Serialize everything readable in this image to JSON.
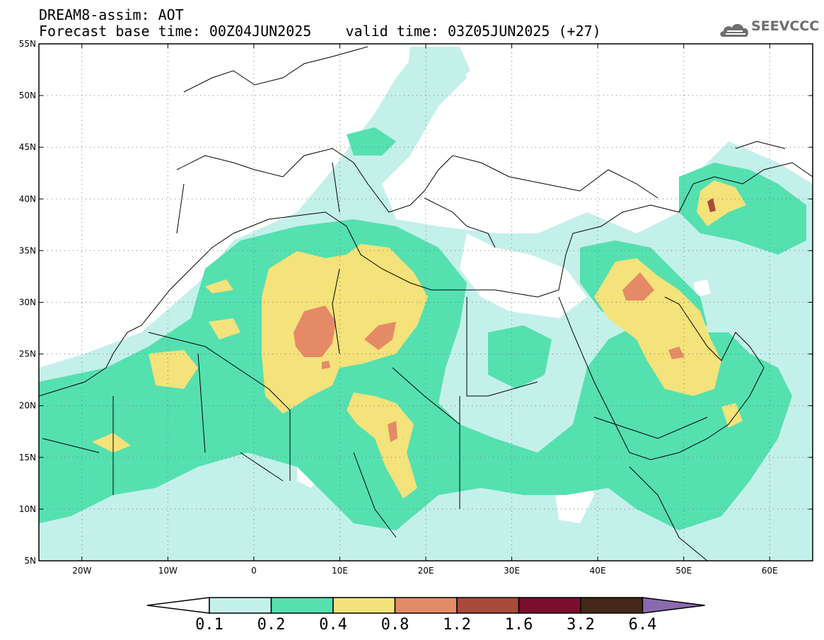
{
  "title": {
    "line1": "DREAM8-assim: AOT",
    "base_time_label": "Forecast base time: 00Z04JUN2025",
    "valid_time_label": "valid time: 03Z05JUN2025 (+27)"
  },
  "logo": {
    "text": "SEEVCCC"
  },
  "map": {
    "variable": "AOT",
    "lon_range": [
      -25,
      65
    ],
    "lat_range": [
      5,
      55
    ],
    "lon_ticks": [
      {
        "value": -20,
        "label": "20W"
      },
      {
        "value": -10,
        "label": "10W"
      },
      {
        "value": 0,
        "label": "0"
      },
      {
        "value": 10,
        "label": "10E"
      },
      {
        "value": 20,
        "label": "20E"
      },
      {
        "value": 30,
        "label": "30E"
      },
      {
        "value": 40,
        "label": "40E"
      },
      {
        "value": 50,
        "label": "50E"
      },
      {
        "value": 60,
        "label": "60E"
      }
    ],
    "lat_ticks": [
      {
        "value": 5,
        "label": "5N"
      },
      {
        "value": 10,
        "label": "10N"
      },
      {
        "value": 15,
        "label": "15N"
      },
      {
        "value": 20,
        "label": "20N"
      },
      {
        "value": 25,
        "label": "25N"
      },
      {
        "value": 30,
        "label": "30N"
      },
      {
        "value": 35,
        "label": "35N"
      },
      {
        "value": 40,
        "label": "40N"
      },
      {
        "value": 45,
        "label": "45N"
      },
      {
        "value": 50,
        "label": "50N"
      },
      {
        "value": 55,
        "label": "55N"
      }
    ],
    "gridlines": "dotted"
  },
  "colorbar": {
    "labels": [
      "0.1",
      "0.2",
      "0.4",
      "0.8",
      "1.2",
      "1.6",
      "3.2",
      "6.4"
    ],
    "colors": [
      "#c4f0ea",
      "#55e0b0",
      "#f4e27a",
      "#e58a66",
      "#aa4a3c",
      "#7a0e2c",
      "#43281a"
    ],
    "under_color": "#ffffff",
    "over_color": "#8a6aae"
  }
}
